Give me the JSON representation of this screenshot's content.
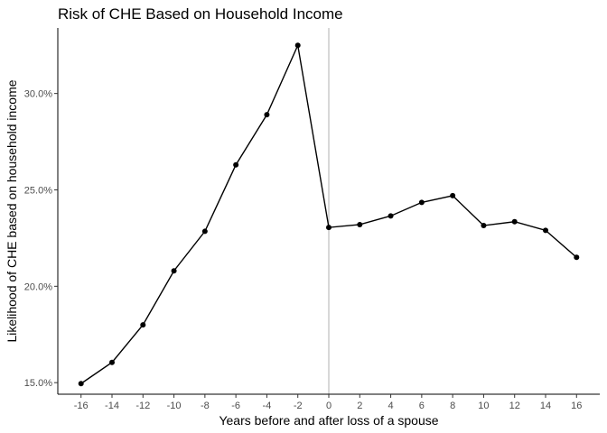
{
  "chart_data": {
    "type": "line",
    "title": "Risk of CHE Based on Household Income",
    "xlabel": "Years before and after loss of a spouse",
    "ylabel": "Likelihood of CHE based on household income",
    "xlim": [
      -17.5,
      17.5
    ],
    "ylim": [
      14.4,
      33.4
    ],
    "x_ticks": [
      -16,
      -14,
      -12,
      -10,
      -8,
      -6,
      -4,
      -2,
      0,
      2,
      4,
      6,
      8,
      10,
      12,
      14,
      16
    ],
    "y_ticks": [
      15,
      20,
      25,
      30
    ],
    "y_tick_labels": [
      "15.0%",
      "20.0%",
      "25.0%",
      "30.0%"
    ],
    "reference_line_x": 0,
    "grid": false,
    "series": [
      {
        "color": "#000000",
        "x": [
          -16,
          -14,
          -12,
          -10,
          -8,
          -6,
          -4,
          -2,
          0,
          2,
          4,
          6,
          8,
          10,
          12,
          14,
          16
        ],
        "y": [
          14.95,
          16.05,
          18.0,
          20.8,
          22.85,
          26.3,
          28.9,
          32.5,
          23.05,
          23.2,
          23.65,
          24.35,
          24.7,
          23.15,
          23.35,
          22.9,
          21.5
        ]
      }
    ],
    "reference_line_color": "#bdbdbd"
  }
}
